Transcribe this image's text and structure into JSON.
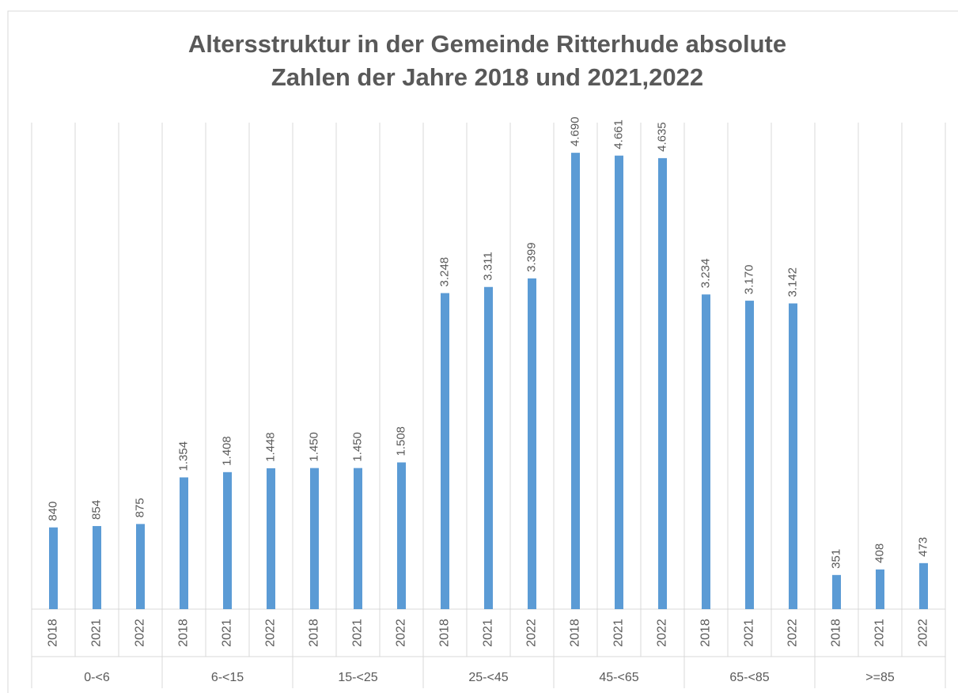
{
  "chart_data": {
    "type": "bar",
    "title": [
      "Altersstruktur in der Gemeinde Ritterhude absolute",
      "Zahlen der Jahre 2018 und 2021,2022"
    ],
    "groups": [
      "0-<6",
      "6-<15",
      "15-<25",
      "25-<45",
      "45-<65",
      "65-<85",
      ">=85"
    ],
    "categories": [
      "2018",
      "2021",
      "2022",
      "2018",
      "2021",
      "2022",
      "2018",
      "2021",
      "2022",
      "2018",
      "2021",
      "2022",
      "2018",
      "2021",
      "2022",
      "2018",
      "2021",
      "2022",
      "2018",
      "2021",
      "2022"
    ],
    "values": [
      840,
      854,
      875,
      1354,
      1408,
      1448,
      1450,
      1450,
      1508,
      3248,
      3311,
      3399,
      4690,
      4661,
      4635,
      3234,
      3170,
      3142,
      351,
      408,
      473
    ],
    "value_labels": [
      "840",
      "854",
      "875",
      "1.354",
      "1.408",
      "1.448",
      "1.450",
      "1.450",
      "1.508",
      "3.248",
      "3.311",
      "3.399",
      "4.690",
      "4.661",
      "4.635",
      "3.234",
      "3.170",
      "3.142",
      "351",
      "408",
      "473"
    ],
    "color": "#5b9bd5",
    "ylim": [
      0,
      5000
    ]
  }
}
